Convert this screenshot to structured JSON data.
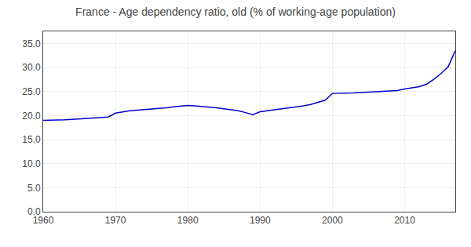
{
  "chart_data": {
    "type": "line",
    "title": "France - Age dependency ratio, old (% of working-age population)",
    "x": [
      1960,
      1961,
      1962,
      1963,
      1964,
      1965,
      1966,
      1967,
      1968,
      1969,
      1970,
      1971,
      1972,
      1973,
      1974,
      1975,
      1976,
      1977,
      1978,
      1979,
      1980,
      1981,
      1982,
      1983,
      1984,
      1985,
      1986,
      1987,
      1988,
      1989,
      1990,
      1991,
      1992,
      1993,
      1994,
      1995,
      1996,
      1997,
      1998,
      1999,
      2000,
      2001,
      2002,
      2003,
      2004,
      2005,
      2006,
      2007,
      2008,
      2009,
      2010,
      2011,
      2012,
      2013,
      2014,
      2015,
      2016,
      2017
    ],
    "values": [
      19.0,
      19.0,
      19.1,
      19.1,
      19.2,
      19.3,
      19.4,
      19.5,
      19.6,
      19.7,
      20.5,
      20.8,
      21.0,
      21.1,
      21.2,
      21.4,
      21.5,
      21.6,
      21.8,
      21.9,
      22.1,
      22.0,
      21.9,
      21.8,
      21.6,
      21.4,
      21.2,
      21.0,
      20.6,
      20.2,
      20.8,
      21.0,
      21.1,
      21.3,
      21.5,
      21.7,
      22.0,
      22.3,
      22.7,
      23.2,
      24.6,
      24.6,
      24.6,
      24.7,
      24.8,
      24.9,
      25.0,
      25.0,
      25.1,
      25.2,
      25.5,
      25.7,
      26.0,
      26.5,
      27.5,
      28.7,
      30.1,
      33.5
    ],
    "color": "#0000cc",
    "xlim": [
      1960,
      2017
    ],
    "ylim": [
      0.0,
      37.5
    ],
    "xticks": [
      1960,
      1970,
      1980,
      1990,
      2000,
      2010
    ],
    "yticks": [
      {
        "value": 0.0,
        "label": "0.0"
      },
      {
        "value": 5.0,
        "label": "5.0"
      },
      {
        "value": 10.0,
        "label": "10.0"
      },
      {
        "value": 15.0,
        "label": "15.0"
      },
      {
        "value": 20.0,
        "label": "20.0"
      },
      {
        "value": 25.0,
        "label": "25.0"
      },
      {
        "value": 30.0,
        "label": "30.0"
      },
      {
        "value": 35.0,
        "label": "35.0"
      }
    ],
    "grid": true
  }
}
